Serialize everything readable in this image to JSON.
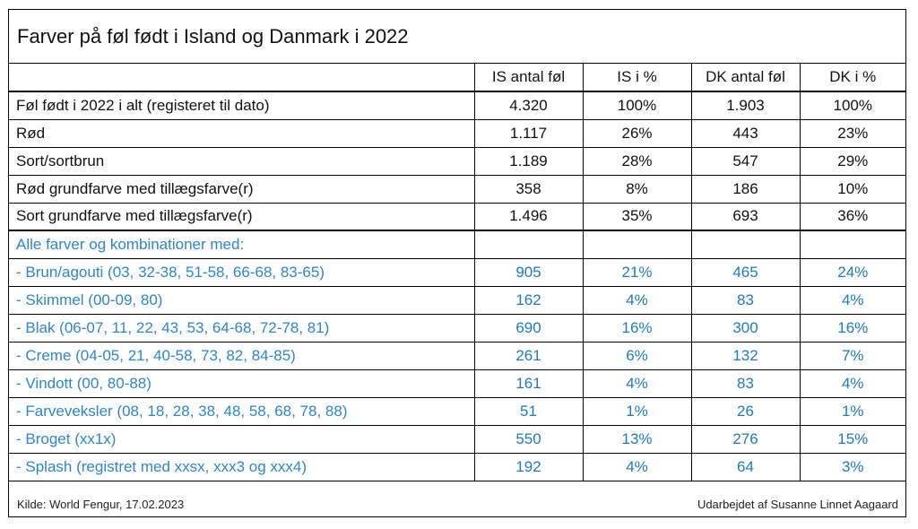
{
  "title": "Farver på føl født i Island og Danmark i 2022",
  "headers": [
    "",
    "IS antal føl",
    "IS i %",
    "DK antal føl",
    "DK i %"
  ],
  "rows": [
    {
      "label": "Føl født i 2022 i alt (registeret til dato)",
      "is_count": "4.320",
      "is_pct": "100%",
      "dk_count": "1.903",
      "dk_pct": "100%"
    },
    {
      "label": "Rød",
      "is_count": "1.117",
      "is_pct": "26%",
      "dk_count": "443",
      "dk_pct": "23%"
    },
    {
      "label": "Sort/sortbrun",
      "is_count": "1.189",
      "is_pct": "28%",
      "dk_count": "547",
      "dk_pct": "29%"
    },
    {
      "label": "Rød grundfarve med tillægsfarve(r)",
      "is_count": "358",
      "is_pct": "8%",
      "dk_count": "186",
      "dk_pct": "10%"
    },
    {
      "label": "Sort grundfarve med tillægsfarve(r)",
      "is_count": "1.496",
      "is_pct": "35%",
      "dk_count": "693",
      "dk_pct": "36%"
    }
  ],
  "section_label": "Alle farver og kombinationer med:",
  "combo_rows": [
    {
      "label": "- Brun/agouti (03, 32-38, 51-58, 66-68, 83-65)",
      "is_count": "905",
      "is_pct": "21%",
      "dk_count": "465",
      "dk_pct": "24%"
    },
    {
      "label": "- Skimmel (00-09, 80)",
      "is_count": "162",
      "is_pct": "4%",
      "dk_count": "83",
      "dk_pct": "4%"
    },
    {
      "label": "- Blak (06-07, 11, 22, 43, 53, 64-68, 72-78, 81)",
      "is_count": "690",
      "is_pct": "16%",
      "dk_count": "300",
      "dk_pct": "16%"
    },
    {
      "label": "- Creme (04-05, 21, 40-58, 73, 82, 84-85)",
      "is_count": "261",
      "is_pct": "6%",
      "dk_count": "132",
      "dk_pct": "7%"
    },
    {
      "label": "- Vindott (00, 80-88)",
      "is_count": "161",
      "is_pct": "4%",
      "dk_count": "83",
      "dk_pct": "4%"
    },
    {
      "label": "- Farveveksler (08, 18, 28, 38, 48, 58, 68, 78, 88)",
      "is_count": "51",
      "is_pct": "1%",
      "dk_count": "26",
      "dk_pct": "1%"
    },
    {
      "label": "- Broget (xx1x)",
      "is_count": "550",
      "is_pct": "13%",
      "dk_count": "276",
      "dk_pct": "15%"
    },
    {
      "label": "- Splash (registret med xxsx, xxx3 og xxx4)",
      "is_count": "192",
      "is_pct": "4%",
      "dk_count": "64",
      "dk_pct": "3%"
    }
  ],
  "footer": {
    "source": "Kilde: World Fengur, 17.02.2023",
    "author": "Udarbejdet af Susanne Linnet Aagaard"
  }
}
